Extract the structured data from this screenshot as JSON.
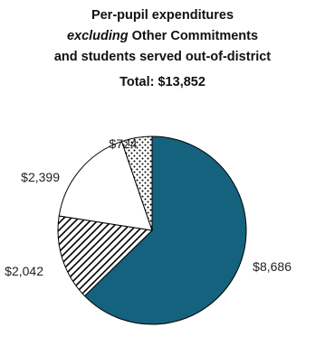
{
  "title": {
    "line1": "Per-pupil expenditures",
    "line2_emphasis": "excluding",
    "line2_rest": " Other Commitments",
    "line3": "and students served out-of-district",
    "total": "Total: $13,852"
  },
  "chart_data": {
    "type": "pie",
    "title": "Per-pupil expenditures excluding Other Commitments and students served out-of-district",
    "total": 13852,
    "slices": [
      {
        "label": "$8,686",
        "value": 8686,
        "fill": "solid",
        "color": "#14627e"
      },
      {
        "label": "$2,042",
        "value": 2042,
        "fill": "diagonal-hatch",
        "color": "#000000"
      },
      {
        "label": "$2,399",
        "value": 2399,
        "fill": "solid",
        "color": "#ffffff"
      },
      {
        "label": "$724",
        "value": 724,
        "fill": "dots",
        "color": "#000000"
      }
    ]
  }
}
